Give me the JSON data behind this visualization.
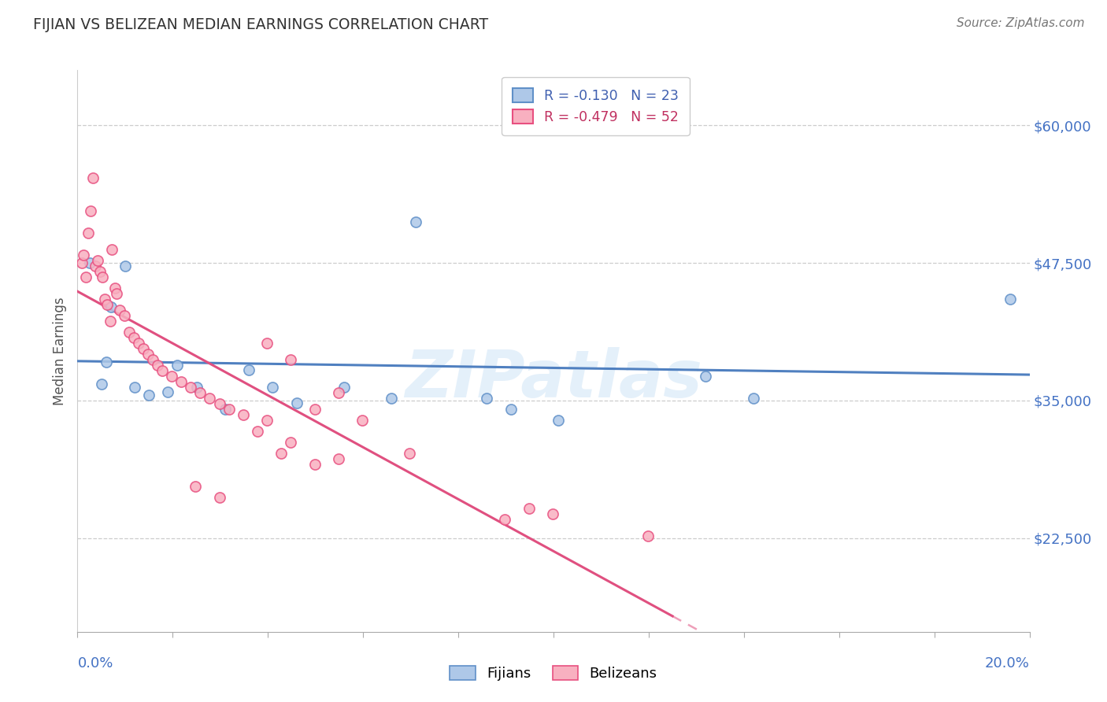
{
  "title": "FIJIAN VS BELIZEAN MEDIAN EARNINGS CORRELATION CHART",
  "source": "Source: ZipAtlas.com",
  "ylabel": "Median Earnings",
  "xlim": [
    0.0,
    20.0
  ],
  "ylim": [
    14000,
    65000
  ],
  "yticks": [
    22500,
    35000,
    47500,
    60000
  ],
  "ytick_labels": [
    "$22,500",
    "$35,000",
    "$47,500",
    "$60,000"
  ],
  "fijian_face_color": "#aec8e8",
  "fijian_edge_color": "#6090c8",
  "belizean_face_color": "#f8b0c0",
  "belizean_edge_color": "#e85080",
  "fijian_line_color": "#5080c0",
  "belizean_line_color": "#e05080",
  "legend_fijian_label": "R = -0.130   N = 23",
  "legend_belizean_label": "R = -0.479   N = 52",
  "legend_fijian_color": "#4060b0",
  "legend_belizean_color": "#c03060",
  "watermark": "ZIPatlas",
  "background_color": "#ffffff",
  "fijian_points": [
    [
      0.25,
      47500
    ],
    [
      0.5,
      36500
    ],
    [
      0.6,
      38500
    ],
    [
      0.7,
      43500
    ],
    [
      1.0,
      47200
    ],
    [
      1.2,
      36200
    ],
    [
      1.5,
      35500
    ],
    [
      1.9,
      35800
    ],
    [
      2.1,
      38200
    ],
    [
      2.5,
      36200
    ],
    [
      3.1,
      34200
    ],
    [
      3.6,
      37800
    ],
    [
      4.1,
      36200
    ],
    [
      4.6,
      34800
    ],
    [
      5.6,
      36200
    ],
    [
      6.6,
      35200
    ],
    [
      7.1,
      51200
    ],
    [
      8.6,
      35200
    ],
    [
      9.1,
      34200
    ],
    [
      10.1,
      33200
    ],
    [
      13.2,
      37200
    ],
    [
      14.2,
      35200
    ],
    [
      19.6,
      44200
    ]
  ],
  "belizean_points": [
    [
      0.1,
      47500
    ],
    [
      0.12,
      48200
    ],
    [
      0.18,
      46200
    ],
    [
      0.22,
      50200
    ],
    [
      0.28,
      52200
    ],
    [
      0.32,
      55200
    ],
    [
      0.38,
      47200
    ],
    [
      0.42,
      47700
    ],
    [
      0.48,
      46700
    ],
    [
      0.52,
      46200
    ],
    [
      0.58,
      44200
    ],
    [
      0.62,
      43700
    ],
    [
      0.68,
      42200
    ],
    [
      0.72,
      48700
    ],
    [
      0.78,
      45200
    ],
    [
      0.82,
      44700
    ],
    [
      0.88,
      43200
    ],
    [
      0.98,
      42700
    ],
    [
      1.08,
      41200
    ],
    [
      1.18,
      40700
    ],
    [
      1.28,
      40200
    ],
    [
      1.38,
      39700
    ],
    [
      1.48,
      39200
    ],
    [
      1.58,
      38700
    ],
    [
      1.68,
      38200
    ],
    [
      1.78,
      37700
    ],
    [
      1.98,
      37200
    ],
    [
      2.18,
      36700
    ],
    [
      2.38,
      36200
    ],
    [
      2.58,
      35700
    ],
    [
      2.78,
      35200
    ],
    [
      2.98,
      34700
    ],
    [
      3.18,
      34200
    ],
    [
      3.48,
      33700
    ],
    [
      3.78,
      32200
    ],
    [
      3.98,
      33200
    ],
    [
      4.28,
      30200
    ],
    [
      4.48,
      31200
    ],
    [
      4.98,
      29200
    ],
    [
      5.48,
      29700
    ],
    [
      2.48,
      27200
    ],
    [
      2.98,
      26200
    ],
    [
      3.98,
      40200
    ],
    [
      4.48,
      38700
    ],
    [
      4.98,
      34200
    ],
    [
      5.48,
      35700
    ],
    [
      5.98,
      33200
    ],
    [
      6.98,
      30200
    ],
    [
      8.98,
      24200
    ],
    [
      9.48,
      25200
    ],
    [
      9.98,
      24700
    ],
    [
      11.98,
      22700
    ]
  ]
}
